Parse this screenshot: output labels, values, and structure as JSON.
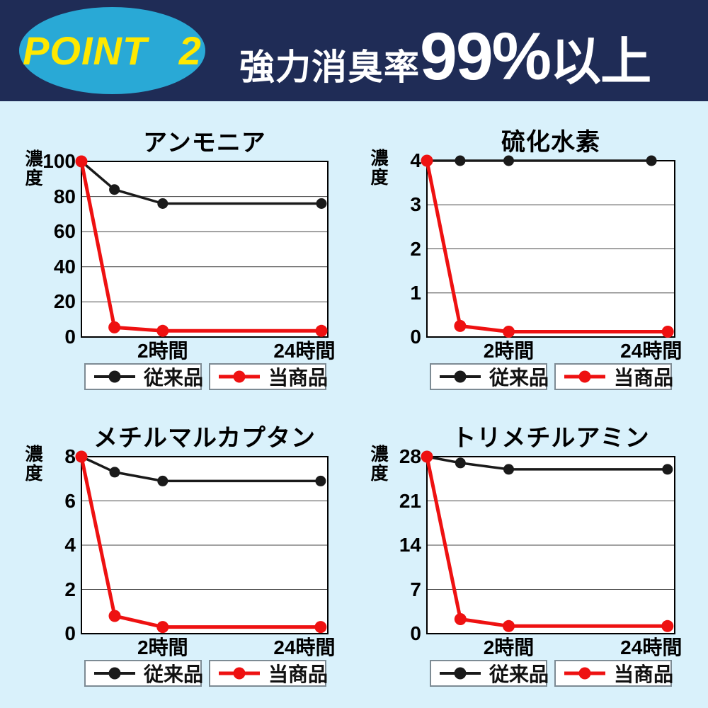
{
  "header": {
    "badge": "POINT 2",
    "title_prefix": "強力消臭率",
    "title_big": "99%",
    "title_suffix": "以上"
  },
  "colors": {
    "page_background": "#d9f1fb",
    "header_background": "#1f2c56",
    "badge_background": "#29a9d6",
    "badge_text": "#ffe800",
    "headline_text": "#ffffff",
    "conventional_series": "#1a1a1a",
    "product_series": "#ee1111",
    "legend_border": "#7d8b94",
    "plot_background": "#ffffff"
  },
  "legend": {
    "conventional_label": "従来品",
    "product_label": "当商品"
  },
  "chart_data": [
    {
      "type": "line",
      "title": "アンモニア",
      "ylabel": "濃度",
      "ylim": [
        0,
        100
      ],
      "yticks": [
        100,
        80,
        60,
        40,
        20,
        0
      ],
      "x_tick_labels": [
        "2時間",
        "24時間"
      ],
      "grid": true,
      "legend_position": "bottom",
      "series": [
        {
          "key": "conventional",
          "name": "従来品",
          "color": "#1a1a1a",
          "x_frac": [
            0,
            0.134,
            0.33,
            0.974
          ],
          "values": [
            100,
            84,
            76,
            76
          ]
        },
        {
          "key": "product",
          "name": "当商品",
          "color": "#ee1111",
          "x_frac": [
            0,
            0.134,
            0.33,
            0.974
          ],
          "values": [
            100,
            5.5,
            3.5,
            3.5
          ]
        }
      ]
    },
    {
      "type": "line",
      "title": "硫化水素",
      "ylabel": "濃度",
      "ylim": [
        0,
        4
      ],
      "yticks": [
        4,
        3,
        2,
        1,
        0
      ],
      "x_tick_labels": [
        "2時間",
        "24時間"
      ],
      "grid": true,
      "legend_position": "bottom",
      "series": [
        {
          "key": "conventional",
          "name": "従来品",
          "color": "#1a1a1a",
          "x_frac": [
            0,
            0.134,
            0.33,
            0.906
          ],
          "values": [
            4,
            4,
            4,
            4
          ]
        },
        {
          "key": "product",
          "name": "当商品",
          "color": "#ee1111",
          "x_frac": [
            0,
            0.134,
            0.33,
            0.972
          ],
          "values": [
            4,
            0.25,
            0.12,
            0.12
          ]
        }
      ]
    },
    {
      "type": "line",
      "title": "メチルマルカプタン",
      "ylabel": "濃度",
      "ylim": [
        0,
        8
      ],
      "yticks": [
        8,
        6,
        4,
        2,
        0
      ],
      "x_tick_labels": [
        "2時間",
        "24時間"
      ],
      "grid": true,
      "legend_position": "bottom",
      "series": [
        {
          "key": "conventional",
          "name": "従来品",
          "color": "#1a1a1a",
          "x_frac": [
            0,
            0.135,
            0.33,
            0.971
          ],
          "values": [
            8,
            7.3,
            6.9,
            6.9
          ]
        },
        {
          "key": "product",
          "name": "当商品",
          "color": "#ee1111",
          "x_frac": [
            0,
            0.135,
            0.33,
            0.971
          ],
          "values": [
            8,
            0.8,
            0.3,
            0.3
          ]
        }
      ]
    },
    {
      "type": "line",
      "title": "トリメチルアミン",
      "ylabel": "濃度",
      "ylim": [
        0,
        28
      ],
      "yticks": [
        28,
        21,
        14,
        7,
        0
      ],
      "x_tick_labels": [
        "2時間",
        "24時間"
      ],
      "grid": true,
      "legend_position": "bottom",
      "series": [
        {
          "key": "conventional",
          "name": "従来品",
          "color": "#1a1a1a",
          "x_frac": [
            0,
            0.135,
            0.33,
            0.971
          ],
          "values": [
            28,
            27,
            26,
            26
          ]
        },
        {
          "key": "product",
          "name": "当商品",
          "color": "#ee1111",
          "x_frac": [
            0,
            0.135,
            0.33,
            0.971
          ],
          "values": [
            28,
            2.3,
            1.2,
            1.2
          ]
        }
      ]
    }
  ]
}
